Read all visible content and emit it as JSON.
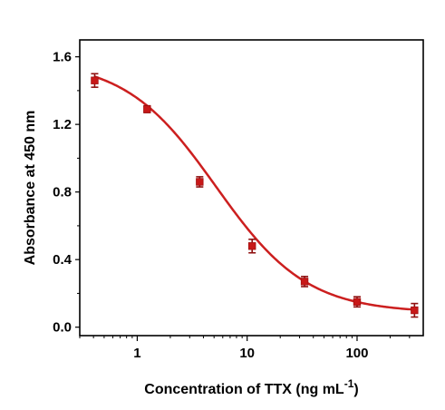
{
  "chart_data": {
    "type": "scatter",
    "title": "",
    "xlabel": "Concentration of TTX (ng mL",
    "xlabel_superscript": "-1",
    "xlabel_suffix": ")",
    "ylabel": "Absorbance at 450 nm",
    "xscale": "log",
    "xlim": [
      0.3,
      400
    ],
    "ylim": [
      -0.05,
      1.7
    ],
    "xticks": [
      1,
      10,
      100
    ],
    "xtick_labels": [
      "1",
      "10",
      "100"
    ],
    "yticks": [
      0.0,
      0.4,
      0.8,
      1.2,
      1.6
    ],
    "ytick_labels": [
      "0.0",
      "0.4",
      "0.8",
      "1.2",
      "1.6"
    ],
    "grid": false,
    "legend": "none",
    "colors": {
      "point": "#c81818",
      "fit": "#cc1f1f",
      "errorbar": "#8f1010",
      "axis": "#000000"
    },
    "series": [
      {
        "x": [
          0.41,
          1.23,
          3.7,
          11.1,
          33.3,
          100,
          333
        ],
        "y": [
          1.46,
          1.29,
          0.86,
          0.48,
          0.27,
          0.15,
          0.1
        ],
        "yerr": [
          0.04,
          0.02,
          0.03,
          0.04,
          0.03,
          0.03,
          0.04
        ]
      }
    ],
    "fit": {
      "type": "four-parameter-logistic",
      "params": {
        "A": 1.58,
        "B": 1.05,
        "C": 5.2,
        "D": 0.085
      }
    }
  }
}
